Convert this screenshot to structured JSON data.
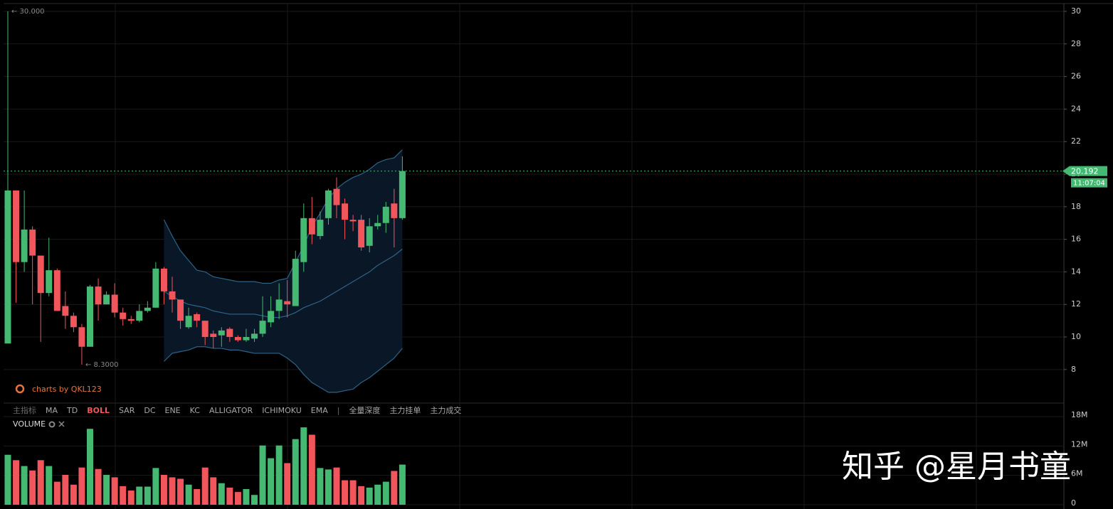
{
  "chart_data": {
    "type": "candlestick",
    "up_color": "#45b972",
    "down_color": "#f0565b",
    "ylim": [
      5.94,
      30.48
    ],
    "yticks": [
      8,
      10,
      12,
      14,
      16,
      18,
      20,
      22,
      24,
      26,
      28,
      30
    ],
    "grid": true,
    "open": [
      9.6,
      19.0,
      14.6,
      16.6,
      15.0,
      12.7,
      14.1,
      11.9,
      11.3,
      10.6,
      9.4,
      13.1,
      12.0,
      12.6,
      11.5,
      11.1,
      11.0,
      11.6,
      11.8,
      14.2,
      12.8,
      12.3,
      10.6,
      11.4,
      11.0,
      10.2,
      10.1,
      10.5,
      10.0,
      9.8,
      9.9,
      10.2,
      10.9,
      11.6,
      12.2,
      11.9,
      14.6,
      17.3,
      16.2,
      17.3,
      19.1,
      18.2,
      17.2,
      17.2,
      15.6,
      16.8,
      17.0,
      18.2,
      17.3
    ],
    "high": [
      30,
      19,
      19,
      16.8,
      15,
      16.1,
      14.2,
      12.8,
      11.5,
      10.8,
      13.2,
      13.6,
      12.8,
      13.3,
      11.8,
      11.3,
      12,
      12.2,
      14.6,
      14.3,
      13.7,
      12.3,
      11.8,
      11.5,
      11,
      10.4,
      10.6,
      10.6,
      10.1,
      10.5,
      10.5,
      12.5,
      12.5,
      13.3,
      13.5,
      15.3,
      18.2,
      18.6,
      17.7,
      19.1,
      19.8,
      18.5,
      17.5,
      17.5,
      17.3,
      17.5,
      18.3,
      19.1,
      21.1
    ],
    "low": [
      9.6,
      12.1,
      14,
      12,
      9.7,
      12.5,
      11.6,
      10.5,
      10.3,
      8.3,
      9.4,
      11,
      12,
      11.2,
      10.7,
      10.8,
      10.9,
      11.5,
      11.8,
      12,
      11.5,
      10.5,
      10.5,
      10.6,
      9.5,
      9.3,
      9.4,
      9.7,
      9.7,
      9.7,
      9.7,
      10,
      10.6,
      11.1,
      11.2,
      11.9,
      14,
      15.7,
      16,
      16.9,
      17.3,
      16,
      16.5,
      15.3,
      15.2,
      16.6,
      16.4,
      15.5,
      17.2
    ],
    "close": [
      19.0,
      14.6,
      16.6,
      15.0,
      12.7,
      14.1,
      11.6,
      11.3,
      10.6,
      9.4,
      13.1,
      12.0,
      12.6,
      11.5,
      11.1,
      11.0,
      11.6,
      11.8,
      14.2,
      12.8,
      12.3,
      11.0,
      11.3,
      11.0,
      10.0,
      10.0,
      10.4,
      10.0,
      9.8,
      10.0,
      10.2,
      11.0,
      11.6,
      12.3,
      12.0,
      14.8,
      17.3,
      16.3,
      17.2,
      19.0,
      18.1,
      17.2,
      17.1,
      15.5,
      16.8,
      17.0,
      18.0,
      17.3,
      20.192
    ],
    "bollinger": {
      "color": "#2d6488",
      "fill": "#0a1726",
      "upper": [
        null,
        null,
        null,
        null,
        null,
        null,
        null,
        null,
        null,
        null,
        null,
        null,
        null,
        null,
        null,
        null,
        null,
        null,
        null,
        17.2,
        16.2,
        15.3,
        14.7,
        14.1,
        14.0,
        13.7,
        13.6,
        13.5,
        13.4,
        13.4,
        13.4,
        13.3,
        13.3,
        13.5,
        13.6,
        14.6,
        15.6,
        16.8,
        17.6,
        18.5,
        19.1,
        19.5,
        19.8,
        20.0,
        20.3,
        20.7,
        20.9,
        21.0,
        21.5
      ],
      "middle": [
        null,
        null,
        null,
        null,
        null,
        null,
        null,
        null,
        null,
        null,
        null,
        null,
        null,
        null,
        null,
        null,
        null,
        null,
        null,
        12.8,
        12.5,
        12.2,
        12.0,
        11.9,
        11.8,
        11.6,
        11.5,
        11.4,
        11.4,
        11.4,
        11.4,
        11.3,
        11.2,
        11.2,
        11.3,
        11.5,
        11.8,
        12.0,
        12.2,
        12.5,
        12.8,
        13.1,
        13.4,
        13.7,
        14.0,
        14.4,
        14.7,
        15.0,
        15.4
      ],
      "lower": [
        null,
        null,
        null,
        null,
        null,
        null,
        null,
        null,
        null,
        null,
        null,
        null,
        null,
        null,
        null,
        null,
        null,
        null,
        null,
        8.5,
        9.0,
        9.1,
        9.2,
        9.4,
        9.4,
        9.3,
        9.3,
        9.2,
        9.2,
        9.1,
        9.0,
        9.0,
        9.0,
        9.0,
        8.7,
        8.3,
        7.7,
        7.2,
        6.9,
        6.6,
        6.6,
        6.7,
        6.8,
        7.2,
        7.5,
        7.9,
        8.3,
        8.7,
        9.3
      ]
    },
    "high_label": "← 30.000",
    "low_label": "← 8.3000",
    "credit": "charts by QKL123",
    "countdown": "11:07:04",
    "indicator_tabs": [
      "主指标",
      "MA",
      "TD",
      "BOLL",
      "SAR",
      "DC",
      "ENE",
      "KC",
      "ALLIGATOR",
      "ICHIMOKU",
      "EMA",
      "|",
      "全量深度",
      "主力挂单",
      "主力成交"
    ],
    "active_tab": "BOLL",
    "volume": {
      "title": "VOLUME",
      "ylim": [
        0,
        18000000
      ],
      "yticks": [
        0,
        {
          "value": 6000000,
          "label": "6M"
        },
        {
          "value": 12000000,
          "label": "12M"
        },
        {
          "value": 18000000,
          "label": "18M"
        }
      ],
      "values": [
        10200000,
        9100000,
        7900000,
        7000000,
        9100000,
        7900000,
        4700000,
        6100000,
        4100000,
        7600000,
        15500000,
        7300000,
        6100000,
        5600000,
        3800000,
        2900000,
        3700000,
        3700000,
        7500000,
        6100000,
        5600000,
        5300000,
        4100000,
        3200000,
        7600000,
        5600000,
        4400000,
        3500000,
        2600000,
        3200000,
        2000000,
        12100000,
        9500000,
        12100000,
        8500000,
        13400000,
        15800000,
        14300000,
        7500000,
        7200000,
        7600000,
        5000000,
        5000000,
        3800000,
        3500000,
        4100000,
        4700000,
        6900000,
        8200000
      ]
    },
    "watermark": "知乎 @星月书童"
  }
}
